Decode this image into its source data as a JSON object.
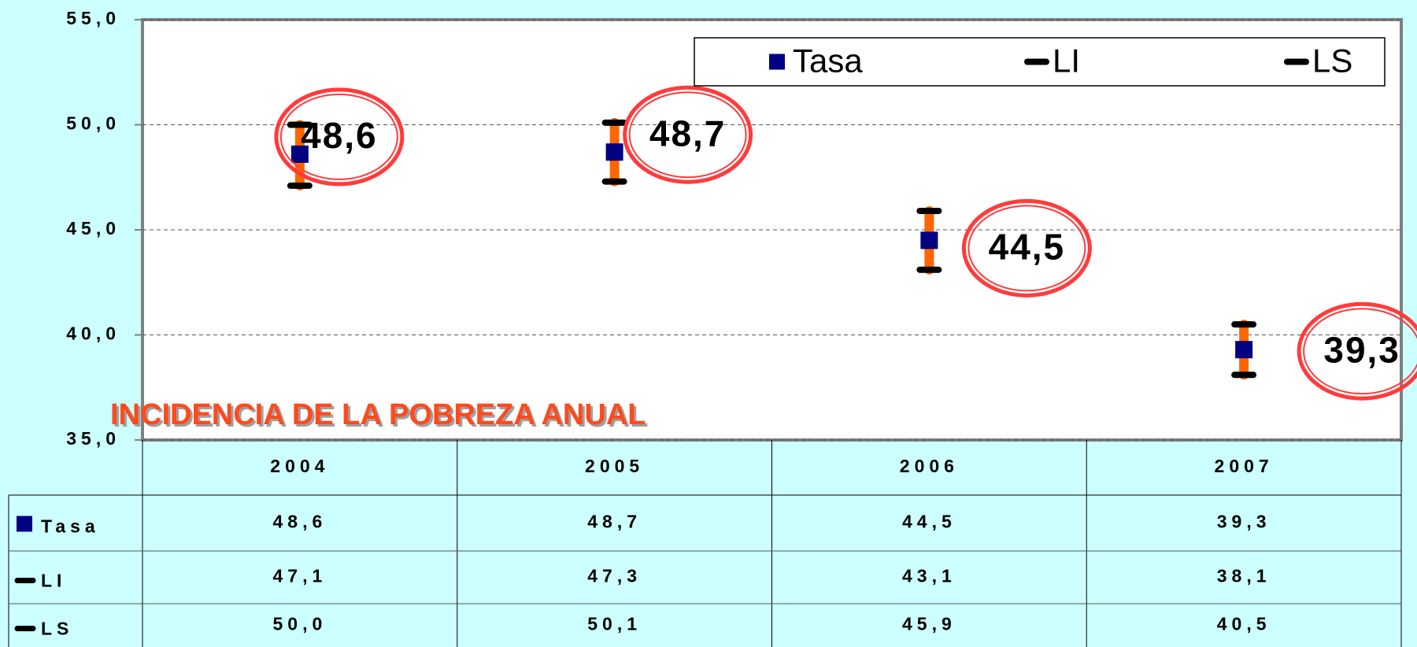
{
  "chart_data": {
    "type": "errorbar",
    "title": "INCIDENCIA DE LA POBREZA ANUAL",
    "categories": [
      "2004",
      "2005",
      "2006",
      "2007"
    ],
    "series": [
      {
        "name": "Tasa",
        "color": "#000080",
        "values": [
          48.6,
          48.7,
          44.5,
          39.3
        ],
        "value_labels": [
          "48,6",
          "48,7",
          "44,5",
          "39,3"
        ]
      },
      {
        "name": "LI",
        "color": "#000000",
        "values": [
          47.1,
          47.3,
          43.1,
          38.1
        ],
        "value_labels": [
          "47,1",
          "47,3",
          "43,1",
          "38,1"
        ]
      },
      {
        "name": "LS",
        "color": "#000000",
        "values": [
          50.0,
          50.1,
          45.9,
          40.5
        ],
        "value_labels": [
          "50,0",
          "50,1",
          "45,9",
          "40,5"
        ]
      }
    ],
    "error_color": "#ff6600",
    "callout_color": "#ff3b3b",
    "ylim": [
      35,
      55
    ],
    "yticks": [
      {
        "value": 35,
        "label": "35,0"
      },
      {
        "value": 40,
        "label": "40,0"
      },
      {
        "value": 45,
        "label": "45,0"
      },
      {
        "value": 50,
        "label": "50,0"
      },
      {
        "value": 55,
        "label": "55,0"
      }
    ],
    "grid": true,
    "legend": "top-right"
  }
}
